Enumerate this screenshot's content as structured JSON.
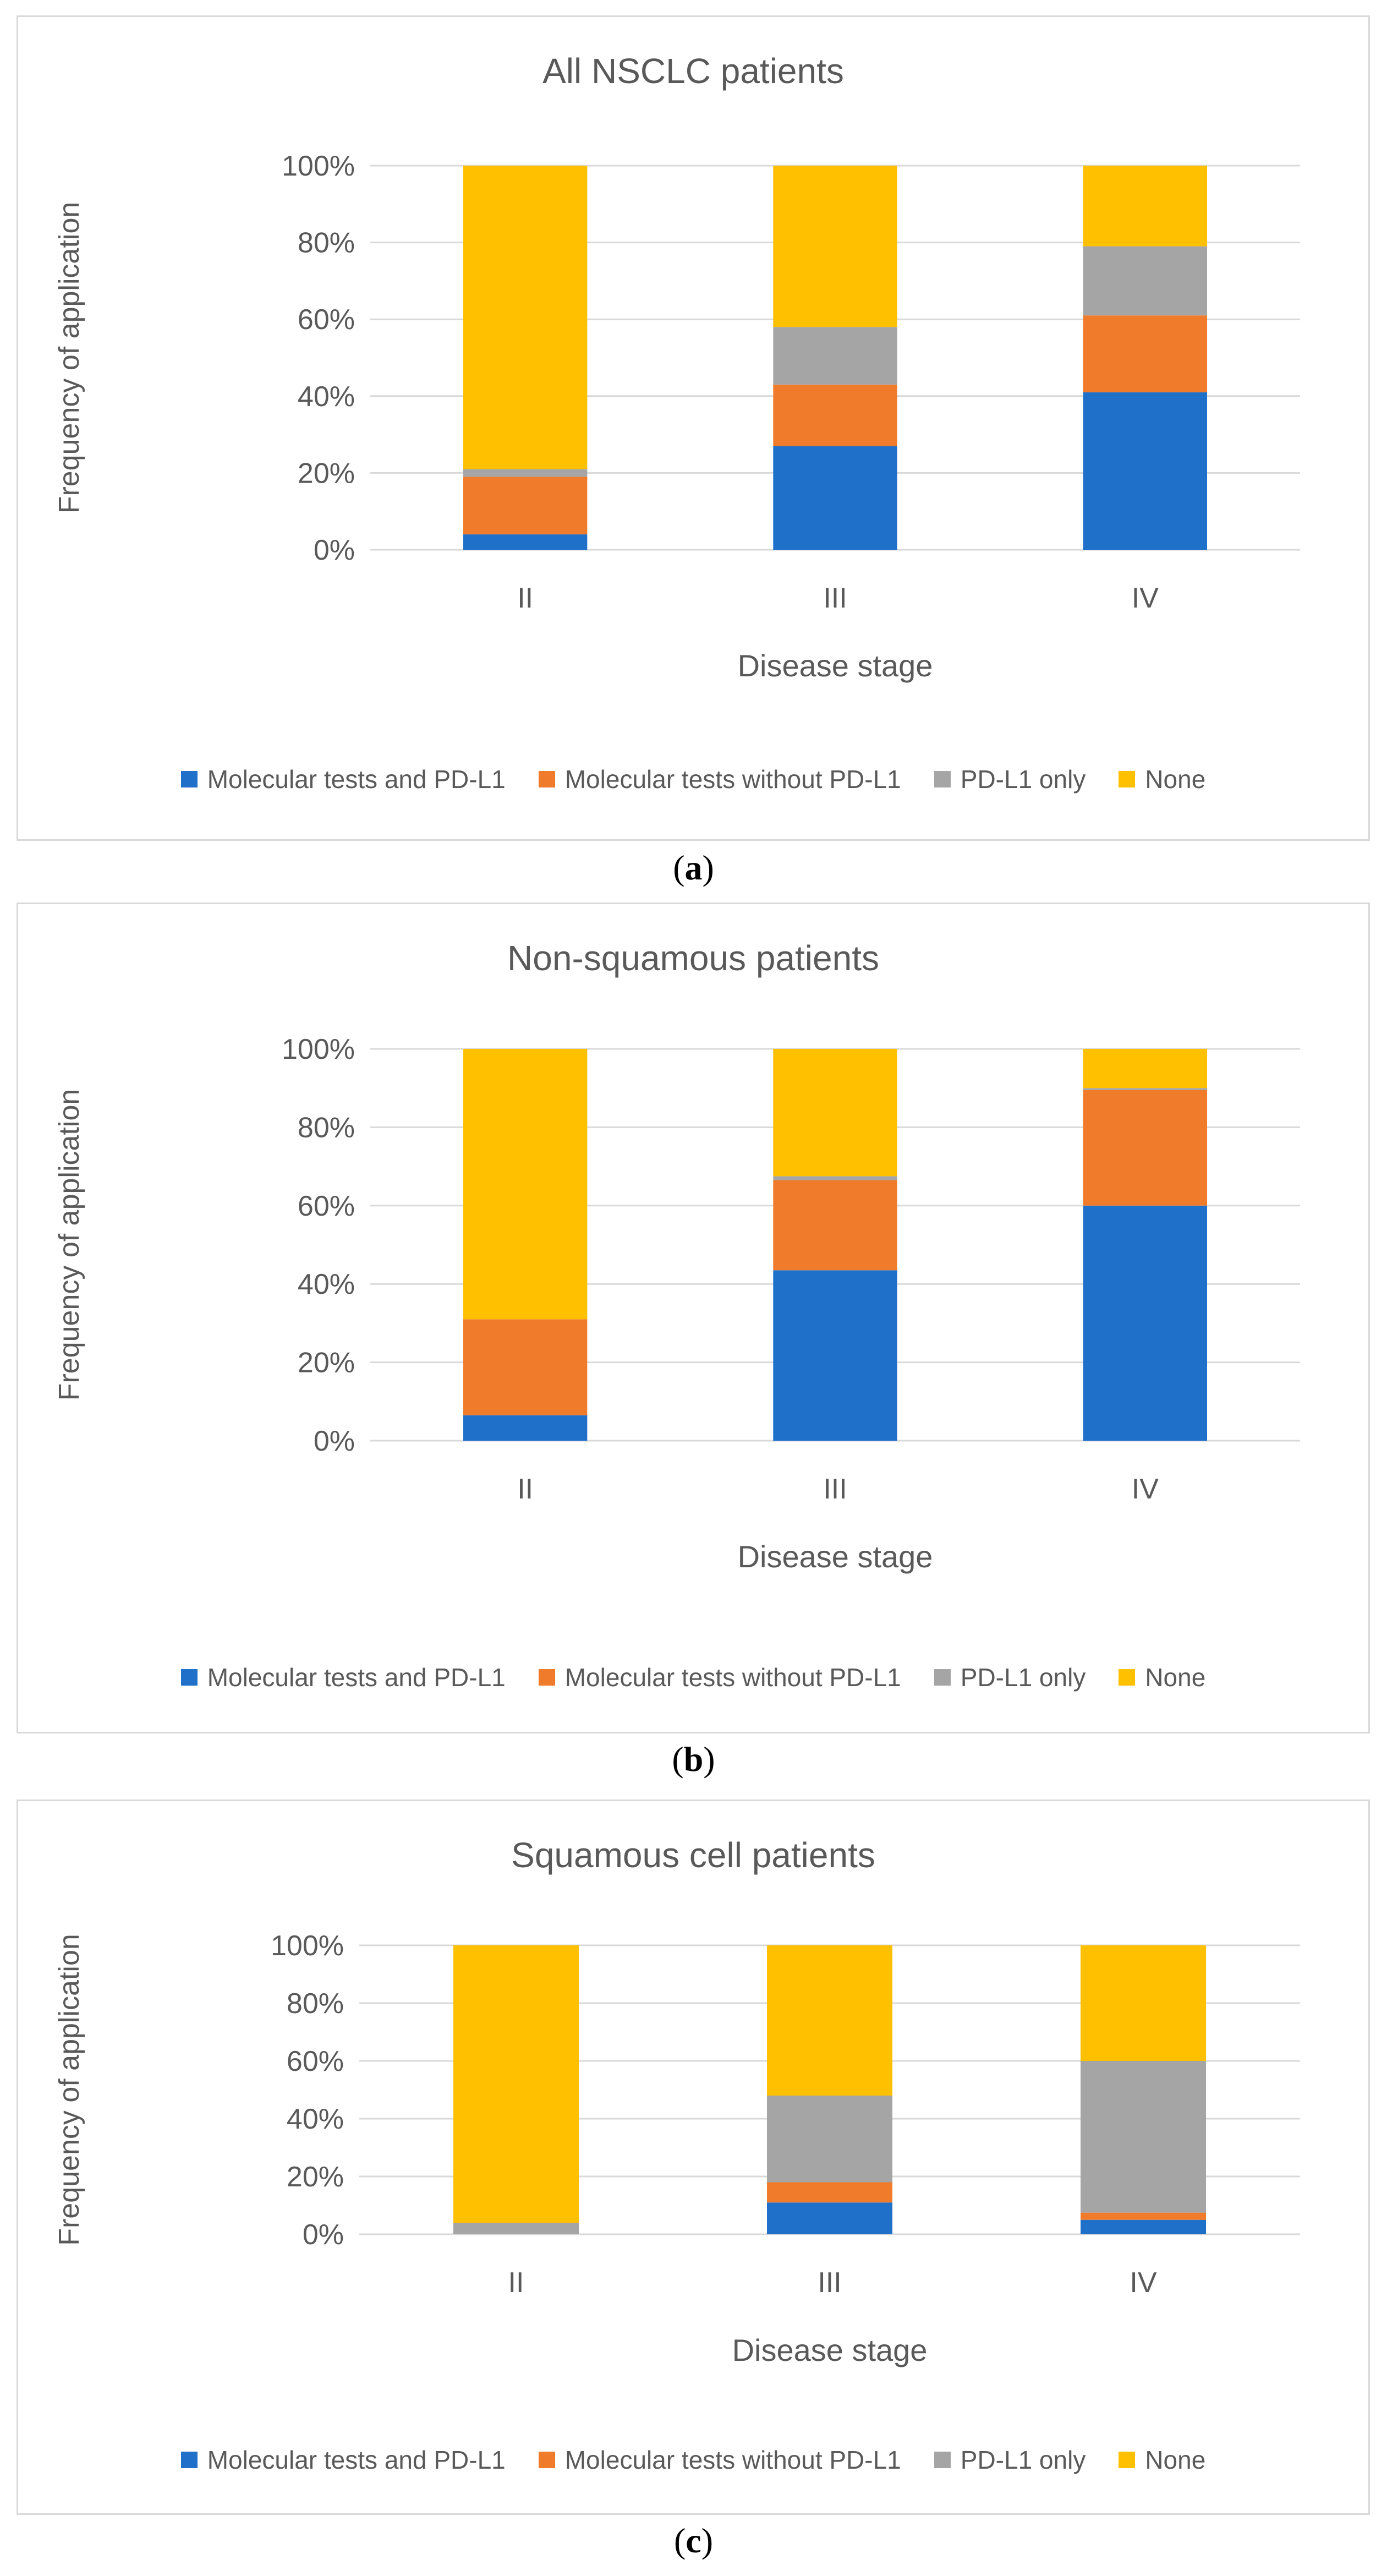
{
  "colors": {
    "Molecular tests and PD-L1": "#1f70c9",
    "Molecular tests without PD-L1": "#f07b2b",
    "PD-L1 only": "#a5a5a5",
    "None": "#ffc000",
    "grid": "#d9d9d9",
    "text": "#595959"
  },
  "chart_data": [
    {
      "type": "bar",
      "stacked": true,
      "title": "All NSCLC patients",
      "xlabel": "Disease stage",
      "ylabel": "Frequency of application",
      "ylim": [
        0,
        100
      ],
      "yticks": [
        "0%",
        "20%",
        "40%",
        "60%",
        "80%",
        "100%"
      ],
      "categories": [
        "II",
        "III",
        "IV"
      ],
      "series": [
        {
          "name": "Molecular tests and PD-L1",
          "values": [
            4,
            27,
            41
          ]
        },
        {
          "name": "Molecular tests without PD-L1",
          "values": [
            15,
            16,
            20
          ]
        },
        {
          "name": "PD-L1 only",
          "values": [
            2,
            15,
            18
          ]
        },
        {
          "name": "None",
          "values": [
            79,
            42,
            21
          ]
        }
      ],
      "legend_position": "bottom",
      "caption": "a"
    },
    {
      "type": "bar",
      "stacked": true,
      "title": "Non-squamous patients",
      "xlabel": "Disease stage",
      "ylabel": "Frequency of application",
      "ylim": [
        0,
        100
      ],
      "yticks": [
        "0%",
        "20%",
        "40%",
        "60%",
        "80%",
        "100%"
      ],
      "categories": [
        "II",
        "III",
        "IV"
      ],
      "series": [
        {
          "name": "Molecular tests and PD-L1",
          "values": [
            6.5,
            43.5,
            60
          ]
        },
        {
          "name": "Molecular tests without PD-L1",
          "values": [
            24.5,
            23,
            29.5
          ]
        },
        {
          "name": "PD-L1 only",
          "values": [
            0,
            1,
            0.5
          ]
        },
        {
          "name": "None",
          "values": [
            69,
            32.5,
            10
          ]
        }
      ],
      "legend_position": "bottom",
      "caption": "b"
    },
    {
      "type": "bar",
      "stacked": true,
      "title": "Squamous cell patients",
      "xlabel": "Disease stage",
      "ylabel": "Frequency of application",
      "ylim": [
        0,
        100
      ],
      "yticks": [
        "0%",
        "20%",
        "40%",
        "60%",
        "80%",
        "100%"
      ],
      "categories": [
        "II",
        "III",
        "IV"
      ],
      "series": [
        {
          "name": "Molecular tests and PD-L1",
          "values": [
            0,
            11,
            5
          ]
        },
        {
          "name": "Molecular tests without PD-L1",
          "values": [
            0,
            7,
            2.5
          ]
        },
        {
          "name": "PD-L1 only",
          "values": [
            4,
            30,
            52.5
          ]
        },
        {
          "name": "None",
          "values": [
            96,
            52,
            40
          ]
        }
      ],
      "legend_position": "bottom",
      "caption": "c"
    }
  ]
}
